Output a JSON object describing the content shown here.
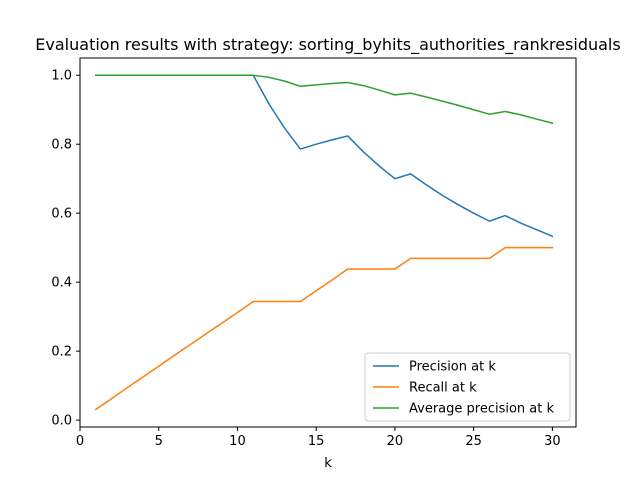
{
  "chart_data": {
    "type": "line",
    "title": "Evaluation results with strategy: sorting_byhits_authorities_rankresiduals",
    "xlabel": "k",
    "ylabel": "",
    "xlim": [
      0,
      31.5
    ],
    "ylim": [
      -0.02,
      1.05
    ],
    "xticks": [
      0,
      5,
      10,
      15,
      20,
      25,
      30
    ],
    "yticks": [
      0.0,
      0.2,
      0.4,
      0.6,
      0.8,
      1.0
    ],
    "grid": false,
    "legend_position": "lower-right",
    "x": [
      1,
      2,
      3,
      4,
      5,
      6,
      7,
      8,
      9,
      10,
      11,
      12,
      13,
      14,
      15,
      16,
      17,
      18,
      19,
      20,
      21,
      22,
      23,
      24,
      25,
      26,
      27,
      28,
      29,
      30
    ],
    "series": [
      {
        "name": "Precision at k",
        "color": "#1f77b4",
        "values": [
          1.0,
          1.0,
          1.0,
          1.0,
          1.0,
          1.0,
          1.0,
          1.0,
          1.0,
          1.0,
          1.0,
          0.917,
          0.846,
          0.786,
          0.8,
          0.8125,
          0.824,
          0.778,
          0.737,
          0.7,
          0.714,
          0.682,
          0.652,
          0.625,
          0.6,
          0.577,
          0.593,
          0.571,
          0.552,
          0.533
        ]
      },
      {
        "name": "Recall at k",
        "color": "#ff7f0e",
        "values": [
          0.031,
          0.062,
          0.094,
          0.125,
          0.156,
          0.188,
          0.219,
          0.25,
          0.281,
          0.312,
          0.344,
          0.344,
          0.344,
          0.344,
          0.375,
          0.406,
          0.438,
          0.438,
          0.438,
          0.438,
          0.469,
          0.469,
          0.469,
          0.469,
          0.469,
          0.469,
          0.5,
          0.5,
          0.5,
          0.5
        ]
      },
      {
        "name": "Average precision at k",
        "color": "#2ca02c",
        "values": [
          1.0,
          1.0,
          1.0,
          1.0,
          1.0,
          1.0,
          1.0,
          1.0,
          1.0,
          1.0,
          1.0,
          0.994,
          0.983,
          0.968,
          0.972,
          0.976,
          0.979,
          0.97,
          0.957,
          0.943,
          0.948,
          0.937,
          0.925,
          0.913,
          0.9,
          0.887,
          0.895,
          0.885,
          0.873,
          0.861
        ]
      }
    ]
  }
}
